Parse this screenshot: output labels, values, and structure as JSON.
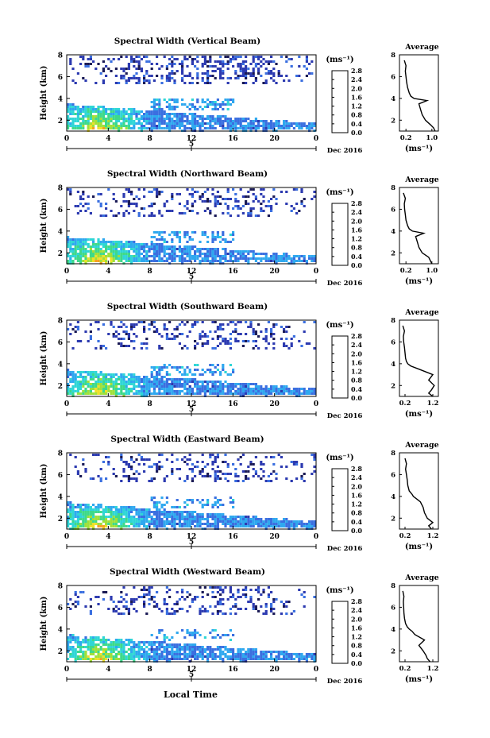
{
  "figure": {
    "xlabel": "Local Time",
    "colorbar_unit": "(ms⁻¹)",
    "colorbar_ticks": [
      "0.0",
      "0.4",
      "0.8",
      "1.2",
      "1.6",
      "2.0",
      "2.4",
      "2.8"
    ],
    "colors": {
      "scale": [
        "#1a1a55",
        "#2c3ab0",
        "#3a6fe0",
        "#2fa8ef",
        "#2fd6d6",
        "#3ed98a",
        "#9fe03a",
        "#f0e028",
        "#f5a020",
        "#e8401a",
        "#d81a1a"
      ]
    }
  },
  "chart_data": [
    {
      "type": "heatmap",
      "title": "Spectral Width (Vertical Beam)",
      "ylabel": "Height (km)",
      "xlim": [
        0,
        24
      ],
      "ylim": [
        1,
        8
      ],
      "x_ticks": [
        "0",
        "4",
        "8",
        "12",
        "16",
        "20",
        "0"
      ],
      "y_ticks": [
        "2",
        "4",
        "6",
        "8"
      ],
      "date_labels": {
        "day": "5",
        "month_year": "Dec 2016"
      },
      "colorbar": {
        "label": "(ms⁻¹)",
        "range": [
          0,
          2.8
        ]
      },
      "profile": {
        "title": "Average",
        "xlabel": "(ms⁻¹)",
        "x_ticks": [
          "0.2",
          "1.0"
        ],
        "xlim": [
          0,
          1.2
        ],
        "y_ticks": [
          "2",
          "4",
          "6",
          "8"
        ],
        "heights": [
          1.0,
          1.3,
          1.6,
          2.0,
          2.5,
          3.0,
          3.5,
          3.8,
          4.0,
          4.2,
          4.5,
          5.0,
          5.5,
          6.0,
          6.5,
          7.0,
          7.5
        ],
        "values": [
          1.1,
          1.05,
          0.95,
          0.8,
          0.7,
          0.65,
          0.6,
          0.85,
          0.45,
          0.35,
          0.3,
          0.25,
          0.22,
          0.2,
          0.18,
          0.2,
          0.15
        ]
      }
    },
    {
      "type": "heatmap",
      "title": "Spectral Width (Northward Beam)",
      "ylabel": "Height (km)",
      "xlim": [
        0,
        24
      ],
      "ylim": [
        1,
        8
      ],
      "x_ticks": [
        "0",
        "4",
        "8",
        "12",
        "16",
        "20",
        "0"
      ],
      "y_ticks": [
        "2",
        "4",
        "6",
        "8"
      ],
      "date_labels": {
        "day": "5",
        "month_year": "Dec 2016"
      },
      "colorbar": {
        "label": "(ms⁻¹)",
        "range": [
          0,
          2.8
        ]
      },
      "profile": {
        "title": "Average",
        "xlabel": "(ms⁻¹)",
        "x_ticks": [
          "0.2",
          "1.0"
        ],
        "xlim": [
          0,
          1.2
        ],
        "heights": [
          1.0,
          1.3,
          1.6,
          2.0,
          2.5,
          3.0,
          3.5,
          3.8,
          4.0,
          4.2,
          4.5,
          5.0,
          5.5,
          6.0,
          6.5,
          7.0,
          7.5
        ],
        "values": [
          1.0,
          0.95,
          0.9,
          0.7,
          0.6,
          0.55,
          0.5,
          0.75,
          0.4,
          0.3,
          0.25,
          0.2,
          0.18,
          0.16,
          0.15,
          0.18,
          0.12
        ]
      }
    },
    {
      "type": "heatmap",
      "title": "Spectral Width (Southward Beam)",
      "ylabel": "Height (km)",
      "xlim": [
        0,
        24
      ],
      "ylim": [
        1,
        8
      ],
      "x_ticks": [
        "0",
        "4",
        "8",
        "12",
        "16",
        "20",
        "0"
      ],
      "y_ticks": [
        "2",
        "4",
        "6",
        "8"
      ],
      "date_labels": {
        "day": "5",
        "month_year": "Dec 2016"
      },
      "colorbar": {
        "label": "(ms⁻¹)",
        "range": [
          0,
          2.8
        ]
      },
      "profile": {
        "title": "Average",
        "xlabel": "(ms⁻¹)",
        "x_ticks": [
          "0.2",
          "1.2"
        ],
        "xlim": [
          0,
          1.4
        ],
        "heights": [
          1.0,
          1.3,
          1.6,
          2.0,
          2.5,
          3.0,
          3.5,
          3.8,
          4.0,
          4.2,
          4.5,
          5.0,
          5.5,
          6.0,
          6.5,
          7.0,
          7.5
        ],
        "values": [
          1.2,
          1.05,
          1.15,
          1.25,
          1.05,
          1.2,
          0.7,
          0.4,
          0.3,
          0.25,
          0.22,
          0.2,
          0.18,
          0.15,
          0.14,
          0.18,
          0.12
        ]
      }
    },
    {
      "type": "heatmap",
      "title": "Spectral Width (Eastward Beam)",
      "ylabel": "Height (km)",
      "xlim": [
        0,
        24
      ],
      "ylim": [
        1,
        8
      ],
      "x_ticks": [
        "0",
        "4",
        "8",
        "12",
        "16",
        "20",
        "0"
      ],
      "y_ticks": [
        "2",
        "4",
        "6",
        "8"
      ],
      "date_labels": {
        "day": "5",
        "month_year": "Dec 2016"
      },
      "colorbar": {
        "label": "(ms⁻¹)",
        "range": [
          0,
          2.8
        ]
      },
      "profile": {
        "title": "Average",
        "xlabel": "(ms⁻¹)",
        "x_ticks": [
          "0.2",
          "1.2"
        ],
        "xlim": [
          0,
          1.4
        ],
        "heights": [
          1.0,
          1.3,
          1.6,
          2.0,
          2.5,
          3.0,
          3.5,
          3.8,
          4.0,
          4.2,
          4.5,
          5.0,
          5.5,
          6.0,
          6.5,
          7.0,
          7.5
        ],
        "values": [
          1.15,
          1.05,
          1.2,
          1.0,
          0.9,
          0.85,
          0.75,
          0.6,
          0.5,
          0.45,
          0.35,
          0.3,
          0.28,
          0.25,
          0.22,
          0.25,
          0.2
        ]
      }
    },
    {
      "type": "heatmap",
      "title": "Spectral Width (Westward Beam)",
      "ylabel": "Height (km)",
      "xlim": [
        0,
        24
      ],
      "ylim": [
        1,
        8
      ],
      "x_ticks": [
        "0",
        "4",
        "8",
        "12",
        "16",
        "20",
        "0"
      ],
      "y_ticks": [
        "2",
        "4",
        "6",
        "8"
      ],
      "date_labels": {
        "day": "5",
        "month_year": "Dec 2016"
      },
      "colorbar": {
        "label": "(ms⁻¹)",
        "range": [
          0,
          2.8
        ]
      },
      "profile": {
        "title": "Average",
        "xlabel": "(ms⁻¹)",
        "x_ticks": [
          "0.2",
          "1.2"
        ],
        "xlim": [
          0,
          1.4
        ],
        "heights": [
          1.0,
          1.3,
          1.6,
          2.0,
          2.5,
          3.0,
          3.5,
          3.8,
          4.0,
          4.2,
          4.5,
          5.0,
          5.5,
          6.0,
          6.5,
          7.0,
          7.5
        ],
        "values": [
          1.1,
          1.0,
          0.95,
          0.85,
          0.7,
          0.9,
          0.55,
          0.45,
          0.35,
          0.28,
          0.22,
          0.18,
          0.16,
          0.15,
          0.14,
          0.16,
          0.12
        ]
      }
    }
  ]
}
